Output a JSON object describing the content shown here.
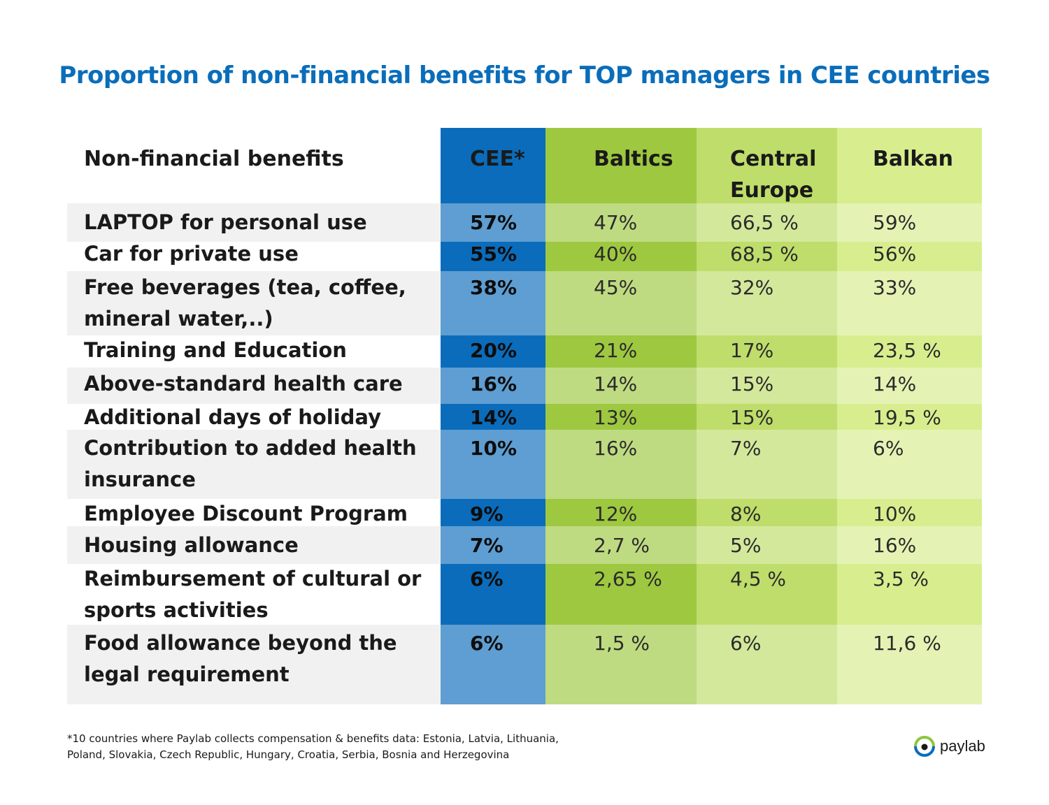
{
  "title": "Proportion of non-financial benefits for TOP managers in CEE countries",
  "chart_data": {
    "type": "table",
    "title": "Proportion of non-financial benefits for TOP managers in CEE countries",
    "columns": [
      "Non-financial benefits",
      "CEE*",
      "Baltics",
      "Central Europe",
      "Balkan"
    ],
    "rows": [
      {
        "benefit": "LAPTOP for personal use",
        "values": [
          "57%",
          "47%",
          "66,5 %",
          "59%"
        ]
      },
      {
        "benefit": "Car for private use",
        "values": [
          "55%",
          "40%",
          "68,5 %",
          "56%"
        ]
      },
      {
        "benefit": "Free beverages (tea, coffee, mineral water,..)",
        "values": [
          "38%",
          "45%",
          "32%",
          "33%"
        ]
      },
      {
        "benefit": "Training and Education",
        "values": [
          "20%",
          "21%",
          "17%",
          "23,5 %"
        ]
      },
      {
        "benefit": "Above-standard health care",
        "values": [
          "16%",
          "14%",
          "15%",
          "14%"
        ]
      },
      {
        "benefit": "Additional days of holiday",
        "values": [
          "14%",
          "13%",
          "15%",
          "19,5 %"
        ]
      },
      {
        "benefit": "Contribution to added health insurance",
        "values": [
          "10%",
          "16%",
          "7%",
          "6%"
        ]
      },
      {
        "benefit": "Employee Discount Program",
        "values": [
          "9%",
          "12%",
          "8%",
          "10%"
        ]
      },
      {
        "benefit": "Housing allowance",
        "values": [
          "7%",
          "2,7 %",
          "5%",
          "16%"
        ]
      },
      {
        "benefit": "Reimbursement of cultural or sports activities",
        "values": [
          "6%",
          "2,65 %",
          "4,5 %",
          "3,5 %"
        ]
      },
      {
        "benefit": "Food allowance beyond the legal requirement",
        "values": [
          "6%",
          "1,5 %",
          "6%",
          "11,6 %"
        ]
      }
    ]
  },
  "colors": {
    "title": "#0a6dba",
    "cee": "#0b6cbb",
    "baltics": "#9ec840",
    "central_europe": "#bfdd6a",
    "balkan": "#d8ee8e",
    "row_stripe": "#f1f1f1"
  },
  "footnote": "*10 countries where Paylab collects compensation & benefits data: Estonia, Latvia, Lithuania, Poland, Slovakia, Czech Republic, Hungary, Croatia, Serbia, Bosnia and Herzegovina",
  "logo": {
    "text": "paylab",
    "icon": "paylab-eye-icon"
  }
}
